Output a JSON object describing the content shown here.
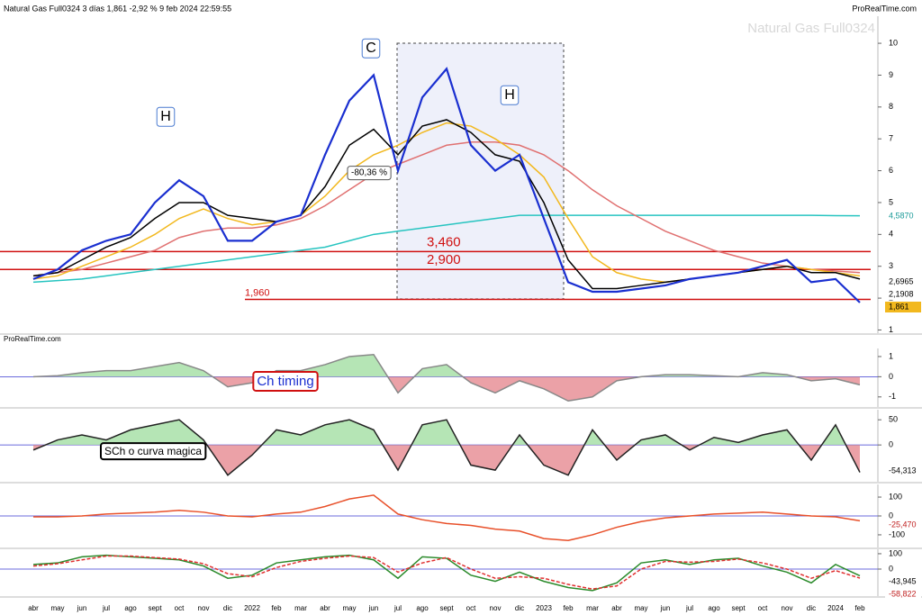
{
  "chart_data": [
    {
      "type": "line",
      "title": "Natural Gas Full0324 3 días 1,861 -2,92 % 9 feb 2024 22:59:55",
      "watermark": "Natural Gas Full0324",
      "source": "ProRealTime.com",
      "categories": [
        "abr",
        "may",
        "jun",
        "jul",
        "ago",
        "sept",
        "oct",
        "nov",
        "dic",
        "2022",
        "feb",
        "mar",
        "abr",
        "may",
        "jun",
        "jul",
        "ago",
        "sept",
        "oct",
        "nov",
        "dic",
        "2023",
        "feb",
        "mar",
        "abr",
        "may",
        "jun",
        "jul",
        "ago",
        "sept",
        "oct",
        "nov",
        "dic",
        "2024",
        "feb"
      ],
      "ylim": [
        0.9,
        10.85
      ],
      "yticks": [
        1,
        2,
        3,
        4,
        5,
        6,
        7,
        8,
        9,
        10
      ],
      "series": [
        {
          "color": "#26c4c0",
          "values": [
            2.5,
            2.55,
            2.6,
            2.7,
            2.8,
            2.9,
            3.0,
            3.1,
            3.2,
            3.3,
            3.4,
            3.5,
            3.6,
            3.8,
            4.0,
            4.1,
            4.2,
            4.3,
            4.4,
            4.5,
            4.6,
            4.6,
            4.6,
            4.6,
            4.6,
            4.6,
            4.6,
            4.6,
            4.6,
            4.6,
            4.6,
            4.6,
            4.6,
            4.59,
            4.587
          ]
        },
        {
          "color": "#e07070",
          "values": [
            2.7,
            2.8,
            2.9,
            3.1,
            3.3,
            3.5,
            3.9,
            4.1,
            4.2,
            4.2,
            4.3,
            4.5,
            4.9,
            5.4,
            5.9,
            6.2,
            6.5,
            6.8,
            6.9,
            6.9,
            6.8,
            6.5,
            6.0,
            5.4,
            4.9,
            4.5,
            4.1,
            3.8,
            3.5,
            3.3,
            3.1,
            3.0,
            2.9,
            2.85,
            2.8
          ]
        },
        {
          "color": "#f2b81e",
          "values": [
            2.6,
            2.7,
            3.0,
            3.3,
            3.6,
            4.0,
            4.5,
            4.8,
            4.5,
            4.3,
            4.4,
            4.6,
            5.2,
            6.0,
            6.5,
            6.8,
            7.2,
            7.5,
            7.4,
            7.0,
            6.5,
            5.8,
            4.5,
            3.3,
            2.8,
            2.6,
            2.5,
            2.6,
            2.7,
            2.8,
            2.9,
            3.0,
            2.9,
            2.8,
            2.7
          ]
        },
        {
          "color": "#000000",
          "values": [
            2.7,
            2.8,
            3.2,
            3.6,
            3.9,
            4.5,
            5.0,
            5.0,
            4.6,
            4.5,
            4.4,
            4.6,
            5.5,
            6.8,
            7.3,
            6.5,
            7.4,
            7.6,
            7.2,
            6.5,
            6.3,
            5.0,
            3.2,
            2.3,
            2.3,
            2.4,
            2.5,
            2.6,
            2.7,
            2.8,
            2.9,
            3.0,
            2.8,
            2.8,
            2.6
          ]
        },
        {
          "color": "#1a2fd0",
          "values": [
            2.6,
            2.9,
            3.5,
            3.8,
            4.0,
            5.0,
            5.7,
            5.2,
            3.8,
            3.8,
            4.4,
            4.6,
            6.5,
            8.2,
            9.0,
            6.0,
            8.3,
            9.2,
            6.8,
            6.0,
            6.5,
            4.5,
            2.5,
            2.2,
            2.2,
            2.3,
            2.4,
            2.6,
            2.7,
            2.8,
            3.0,
            3.2,
            2.5,
            2.6,
            1.861
          ]
        }
      ],
      "levels": [
        {
          "value": 3.46,
          "label": "3,460"
        },
        {
          "value": 2.9,
          "label": "2,900"
        },
        {
          "value": 1.96,
          "label": "1,960"
        }
      ],
      "annotations": [
        "H",
        "C",
        "H",
        "-80,36 %"
      ],
      "value_labels": [
        "4,5870",
        "2,6965",
        "2,1908",
        "1,861"
      ]
    },
    {
      "type": "area",
      "annotations": [
        "Ch timing"
      ],
      "ylim": [
        -1.5,
        1.4
      ],
      "yticks": [
        1,
        0,
        -1
      ],
      "series": [
        {
          "color": "#888888",
          "values": [
            0,
            0.05,
            0.2,
            0.3,
            0.3,
            0.5,
            0.7,
            0.3,
            -0.5,
            -0.3,
            0.3,
            0.3,
            0.6,
            1.0,
            1.1,
            -0.8,
            0.4,
            0.6,
            -0.3,
            -0.8,
            -0.2,
            -0.6,
            -1.2,
            -1.0,
            -0.2,
            0,
            0.1,
            0.1,
            0.05,
            0,
            0.2,
            0.1,
            -0.2,
            -0.1,
            -0.4
          ]
        }
      ]
    },
    {
      "type": "area",
      "annotations": [
        "SCh o curva magica"
      ],
      "ylim": [
        -73,
        70
      ],
      "yticks": [
        50,
        0
      ],
      "value_labels": [
        "-54,313"
      ],
      "series": [
        {
          "color": "#222222",
          "values": [
            -10,
            10,
            20,
            10,
            30,
            40,
            50,
            10,
            -60,
            -20,
            30,
            20,
            40,
            50,
            30,
            -50,
            40,
            50,
            -40,
            -50,
            20,
            -40,
            -60,
            30,
            -30,
            10,
            20,
            -10,
            15,
            5,
            20,
            30,
            -30,
            40,
            -54.313
          ]
        }
      ]
    },
    {
      "type": "line",
      "ylim": [
        -167,
        167
      ],
      "yticks": [
        100,
        0,
        -100
      ],
      "value_labels": [
        "-25,470"
      ],
      "series": [
        {
          "color": "#e8502a",
          "values": [
            -5,
            -5,
            0,
            10,
            15,
            20,
            30,
            20,
            0,
            -5,
            10,
            20,
            50,
            90,
            110,
            10,
            -20,
            -40,
            -50,
            -70,
            -80,
            -120,
            -130,
            -100,
            -60,
            -30,
            -10,
            0,
            10,
            15,
            20,
            10,
            0,
            -5,
            -25.47
          ]
        }
      ]
    },
    {
      "type": "line",
      "ylim": [
        -176,
        129
      ],
      "yticks": [
        100,
        0
      ],
      "value_labels": [
        "-43,945",
        "-58,822"
      ],
      "series": [
        {
          "color": "#2a8a2a",
          "values": [
            30,
            40,
            80,
            90,
            80,
            70,
            60,
            20,
            -60,
            -40,
            40,
            60,
            80,
            90,
            60,
            -60,
            80,
            70,
            -40,
            -80,
            -20,
            -80,
            -120,
            -140,
            -90,
            40,
            60,
            30,
            60,
            70,
            20,
            -20,
            -90,
            30,
            -43.945
          ]
        },
        {
          "color": "#e03030",
          "dash": true,
          "values": [
            20,
            35,
            60,
            85,
            85,
            75,
            65,
            35,
            -30,
            -50,
            10,
            50,
            70,
            85,
            75,
            -20,
            40,
            75,
            0,
            -60,
            -50,
            -60,
            -100,
            -130,
            -110,
            0,
            50,
            45,
            50,
            65,
            40,
            0,
            -60,
            -10,
            -58.822
          ]
        }
      ]
    }
  ]
}
